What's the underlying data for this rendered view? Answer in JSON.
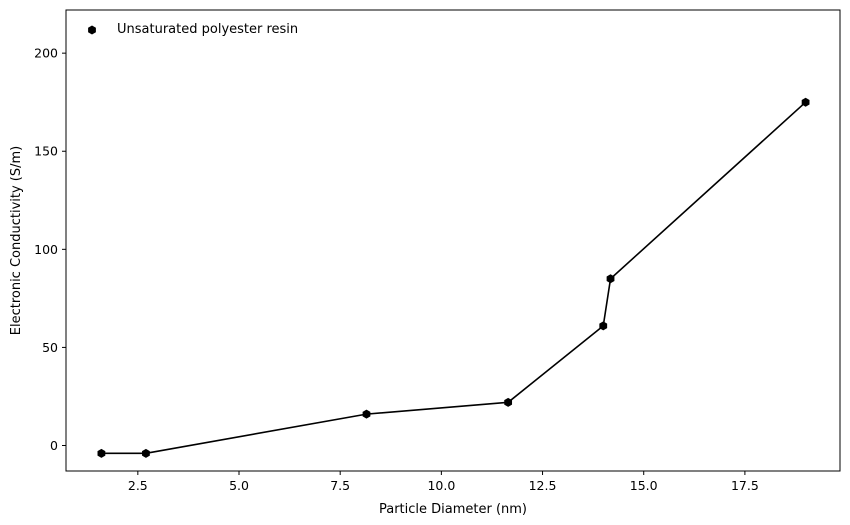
{
  "chart_data": {
    "type": "line",
    "xlabel": "Particle Diameter (nm)",
    "ylabel": "Electronic Conductivity (S/m)",
    "xlim": [
      0.725,
      19.85
    ],
    "ylim": [
      -13,
      222
    ],
    "xticks": [
      2.5,
      5.0,
      7.5,
      10.0,
      12.5,
      15.0,
      17.5
    ],
    "xtick_labels": [
      "2.5",
      "5.0",
      "7.5",
      "10.0",
      "12.5",
      "15.0",
      "17.5"
    ],
    "yticks": [
      0,
      50,
      100,
      150,
      200
    ],
    "ytick_labels": [
      "0",
      "50",
      "100",
      "150",
      "200"
    ],
    "grid": false,
    "legend_position": "top-left",
    "series": [
      {
        "name": "Unsaturated polyester resin",
        "color": "#000000",
        "marker": "hexagon",
        "x": [
          1.6,
          2.7,
          8.15,
          11.65,
          14.0,
          14.18,
          19.0
        ],
        "y": [
          -4,
          -4,
          16,
          22,
          61,
          85,
          175
        ]
      }
    ]
  }
}
